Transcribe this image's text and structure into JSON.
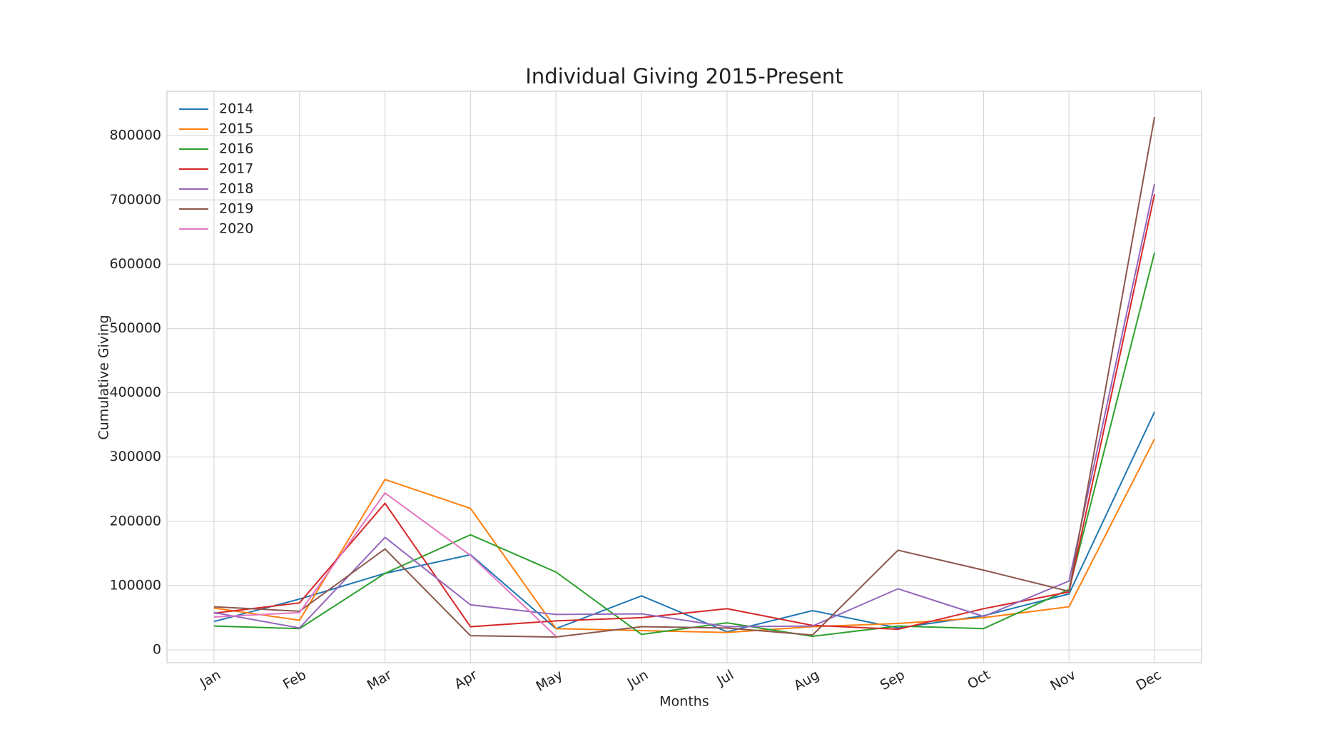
{
  "chart_data": {
    "type": "line",
    "title": "Individual Giving 2015-Present",
    "x_label": "Months",
    "y_label": "Cumulative Giving",
    "categories": [
      "Jan",
      "Feb",
      "Mar",
      "Apr",
      "May",
      "Jun",
      "Jul",
      "Aug",
      "Sep",
      "Oct",
      "Nov",
      "Dec"
    ],
    "series": [
      {
        "name": "2014",
        "color": "#1f77b4",
        "values": [
          44000,
          79000,
          119000,
          148000,
          33000,
          84000,
          28000,
          61000,
          34000,
          53000,
          87000,
          370000
        ]
      },
      {
        "name": "2015",
        "color": "#ff7f0e",
        "values": [
          65000,
          46000,
          265000,
          220000,
          33000,
          30000,
          27000,
          36000,
          41000,
          50000,
          67000,
          328000
        ]
      },
      {
        "name": "2016",
        "color": "#2ca02c",
        "values": [
          37000,
          33000,
          119000,
          179000,
          121000,
          24000,
          42000,
          21000,
          37000,
          33000,
          94000,
          618000
        ]
      },
      {
        "name": "2017",
        "color": "#d62728",
        "values": [
          57000,
          73000,
          228000,
          36000,
          45000,
          50000,
          64000,
          38000,
          32000,
          64000,
          90000,
          709000
        ]
      },
      {
        "name": "2018",
        "color": "#9467bd",
        "values": [
          58000,
          34000,
          175000,
          70000,
          55000,
          56000,
          36000,
          37000,
          95000,
          52000,
          107000,
          725000
        ]
      },
      {
        "name": "2019",
        "color": "#8c564b",
        "values": [
          67000,
          60000,
          157000,
          22000,
          20000,
          36000,
          34000,
          23000,
          155000,
          124000,
          91000,
          829000
        ]
      },
      {
        "name": "2020",
        "color": "#e377c2",
        "values": [
          51000,
          58000,
          244000,
          147000,
          21000,
          null,
          null,
          null,
          null,
          null,
          null,
          null
        ]
      }
    ],
    "ylim": [
      -20000,
      869000
    ],
    "yticks": [
      0,
      100000,
      200000,
      300000,
      400000,
      500000,
      600000,
      700000,
      800000
    ],
    "grid": true,
    "legend": "upper left"
  }
}
